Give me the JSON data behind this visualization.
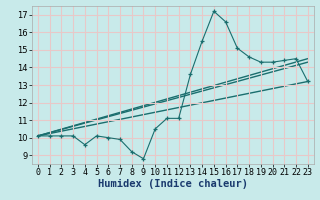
{
  "title": "",
  "xlabel": "Humidex (Indice chaleur)",
  "bg_color": "#c8eaea",
  "grid_color": "#e8c8c8",
  "line_color": "#1a6e6e",
  "xlim": [
    -0.5,
    23.5
  ],
  "ylim": [
    8.5,
    17.5
  ],
  "xticks": [
    0,
    1,
    2,
    3,
    4,
    5,
    6,
    7,
    8,
    9,
    10,
    11,
    12,
    13,
    14,
    15,
    16,
    17,
    18,
    19,
    20,
    21,
    22,
    23
  ],
  "yticks": [
    9,
    10,
    11,
    12,
    13,
    14,
    15,
    16,
    17
  ],
  "data_x": [
    0,
    1,
    2,
    3,
    4,
    5,
    6,
    7,
    8,
    9,
    10,
    11,
    12,
    13,
    14,
    15,
    16,
    17,
    18,
    19,
    20,
    21,
    22,
    23
  ],
  "data_y": [
    10.1,
    10.1,
    10.1,
    10.1,
    9.6,
    10.1,
    10.0,
    9.9,
    9.2,
    8.8,
    10.5,
    11.1,
    11.1,
    13.6,
    15.5,
    17.2,
    16.6,
    15.1,
    14.6,
    14.3,
    14.3,
    14.4,
    14.5,
    13.2
  ],
  "line1_x": [
    0,
    23
  ],
  "line1_y": [
    10.1,
    13.2
  ],
  "line2_x": [
    0,
    23
  ],
  "line2_y": [
    10.1,
    14.5
  ],
  "line3_x": [
    0,
    23
  ],
  "line3_y": [
    10.1,
    14.3
  ],
  "font_size_tick": 6,
  "font_size_label": 7.5
}
